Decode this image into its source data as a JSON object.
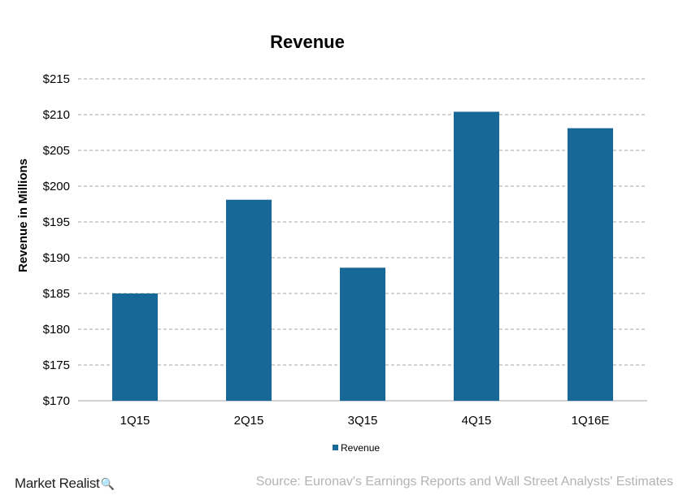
{
  "chart_data": {
    "type": "bar",
    "title": "Revenue",
    "xlabel": "",
    "ylabel": "Revenue in Millions",
    "categories": [
      "1Q15",
      "2Q15",
      "3Q15",
      "4Q15",
      "1Q16E"
    ],
    "series": [
      {
        "name": "Revenue",
        "values": [
          185.0,
          198.1,
          188.6,
          210.4,
          208.1
        ],
        "color": "#176797"
      }
    ],
    "ylim": [
      170,
      215
    ],
    "yticks": [
      170,
      175,
      180,
      185,
      190,
      195,
      200,
      205,
      210,
      215
    ],
    "ytick_labels": [
      "$170",
      "$175",
      "$180",
      "$185",
      "$190",
      "$195",
      "$200",
      "$205",
      "$210",
      "$215"
    ],
    "grid": "horizontal dashed",
    "legend_position": "bottom"
  },
  "footer": {
    "brand": "Market Realist",
    "brand_icon": "magnifier-icon",
    "source": "Source: Euronav's Earnings Reports and Wall Street Analysts' Estimates"
  }
}
